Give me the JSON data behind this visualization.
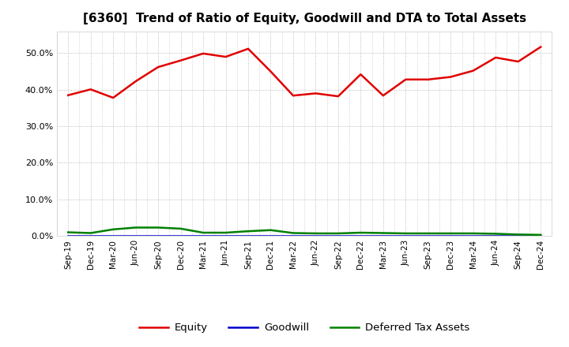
{
  "title": "[6360]  Trend of Ratio of Equity, Goodwill and DTA to Total Assets",
  "x_labels": [
    "Sep-19",
    "Dec-19",
    "Mar-20",
    "Jun-20",
    "Sep-20",
    "Dec-20",
    "Mar-21",
    "Jun-21",
    "Sep-21",
    "Dec-21",
    "Mar-22",
    "Jun-22",
    "Sep-22",
    "Dec-22",
    "Mar-23",
    "Jun-23",
    "Sep-23",
    "Dec-23",
    "Mar-24",
    "Jun-24",
    "Sep-24",
    "Dec-24"
  ],
  "equity": [
    0.385,
    0.401,
    0.378,
    0.423,
    0.462,
    0.48,
    0.499,
    0.49,
    0.512,
    0.45,
    0.384,
    0.39,
    0.382,
    0.442,
    0.384,
    0.428,
    0.428,
    0.435,
    0.452,
    0.488,
    0.477,
    0.517
  ],
  "goodwill": [
    0.0,
    0.0,
    0.0,
    0.0,
    0.0,
    0.0,
    0.0,
    0.0,
    0.0,
    0.0,
    0.0,
    0.0,
    0.0,
    0.0,
    0.0,
    0.0,
    0.0,
    0.0,
    0.0,
    0.0,
    0.0,
    0.0
  ],
  "dta": [
    0.01,
    0.008,
    0.018,
    0.023,
    0.023,
    0.02,
    0.009,
    0.009,
    0.013,
    0.016,
    0.008,
    0.007,
    0.007,
    0.009,
    0.008,
    0.007,
    0.007,
    0.007,
    0.007,
    0.006,
    0.004,
    0.003
  ],
  "equity_color": "#e00000",
  "goodwill_color": "#0000cc",
  "dta_color": "#008000",
  "background_color": "#ffffff",
  "plot_bg_color": "#ffffff",
  "grid_color": "#aaaaaa",
  "ylim": [
    0.0,
    0.56
  ],
  "yticks": [
    0.0,
    0.1,
    0.2,
    0.3,
    0.4,
    0.5
  ],
  "legend_labels": [
    "Equity",
    "Goodwill",
    "Deferred Tax Assets"
  ]
}
